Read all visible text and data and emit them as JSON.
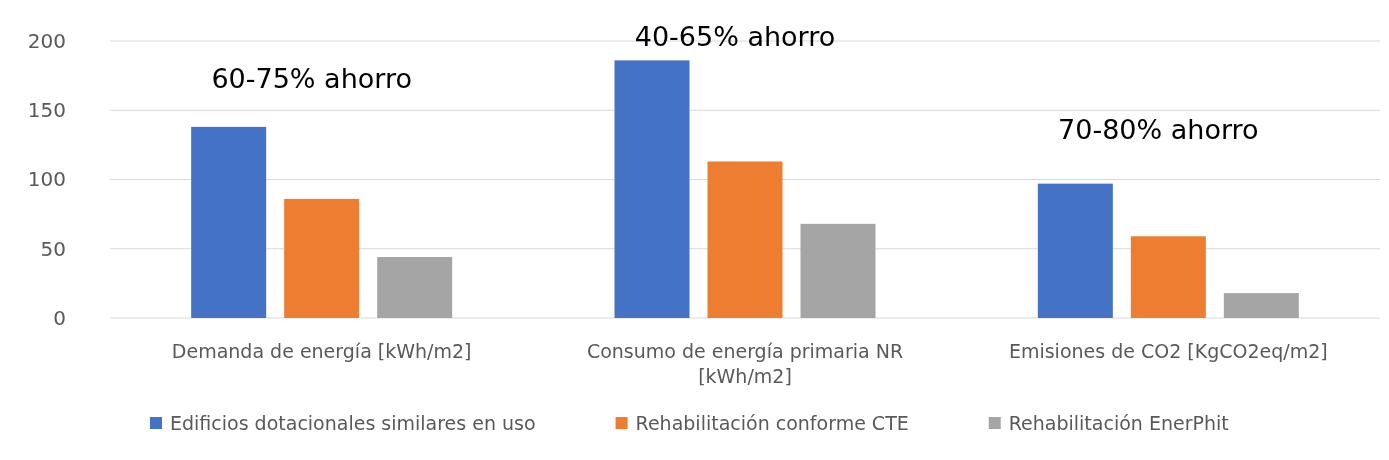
{
  "chart_data": {
    "type": "bar",
    "categories": [
      "Demanda de energía [kWh/m2]",
      "Consumo de energía primaria NR [kWh/m2]",
      "Emisiones de CO2 [KgCO2eq/m2]"
    ],
    "series": [
      {
        "name": "Edificios dotacionales similares en uso",
        "color": "#4472c4",
        "values": [
          138,
          186,
          97
        ]
      },
      {
        "name": "Rehabilitación conforme CTE",
        "color": "#ed7d31",
        "values": [
          86,
          113,
          59
        ]
      },
      {
        "name": "Rehabilitación EnerPhit",
        "color": "#a5a5a5",
        "values": [
          44,
          68,
          18
        ]
      }
    ],
    "ylim": [
      0,
      200
    ],
    "yticks": [
      0,
      50,
      100,
      150,
      200
    ],
    "grid": "y",
    "legend": "bottom",
    "annotations": [
      "60-75% ahorro",
      "40-65% ahorro",
      "70-80% ahorro"
    ]
  }
}
